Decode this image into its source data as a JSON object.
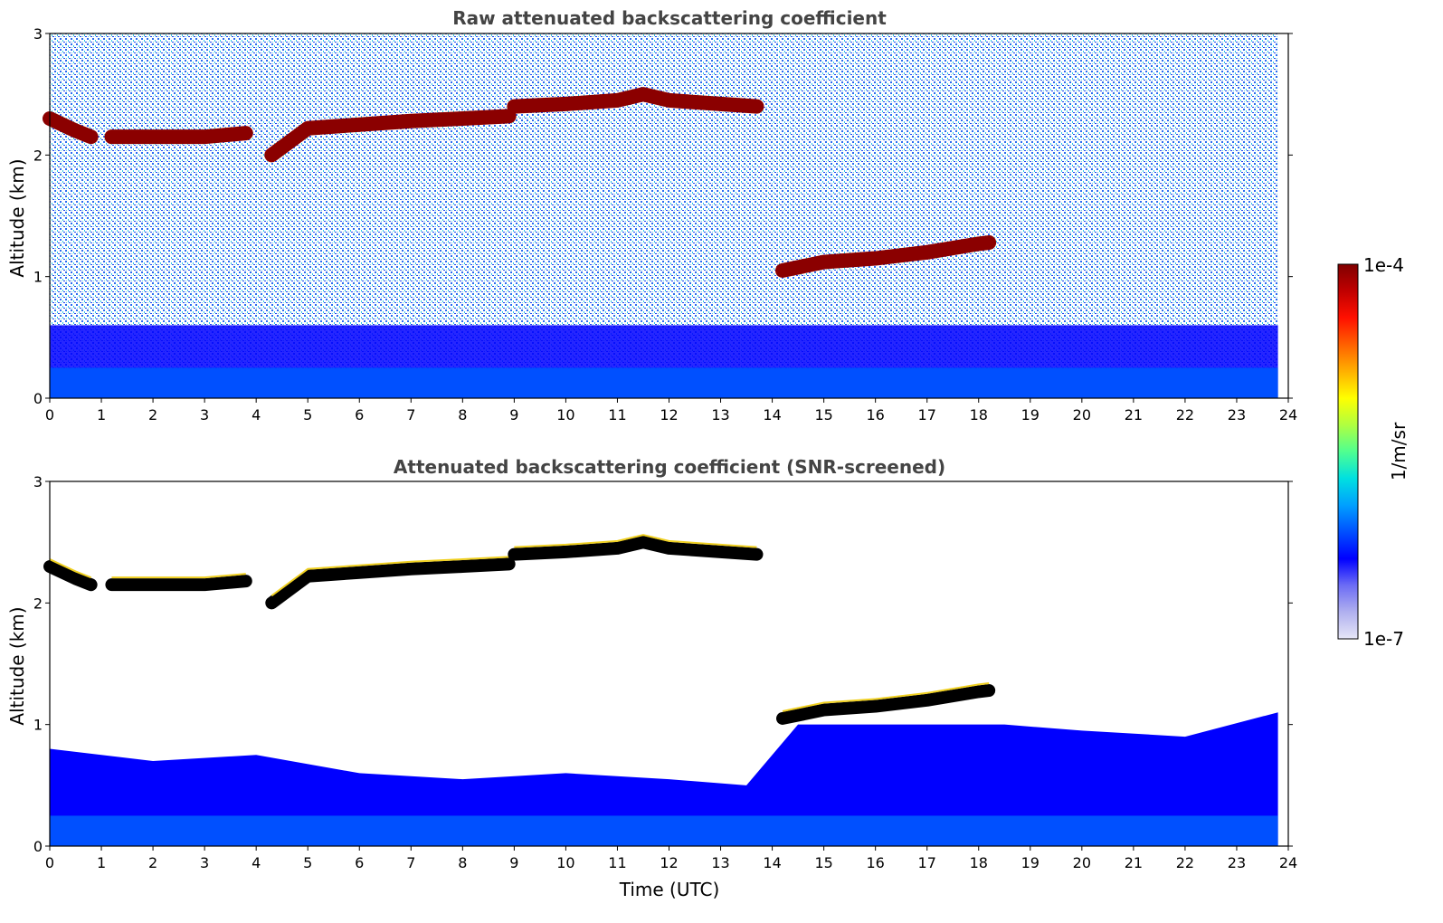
{
  "colorbar": {
    "label": "1/m/sr",
    "max_label": "1e-4",
    "min_label": "1e-7",
    "colors": [
      "#e6e6f7",
      "#b0b0ef",
      "#6c6cf5",
      "#0000ff",
      "#0050ff",
      "#00a0ff",
      "#00e0e0",
      "#50ff90",
      "#b0ff40",
      "#ffff00",
      "#ffb000",
      "#ff6000",
      "#ff1000",
      "#c00000",
      "#800000"
    ]
  },
  "chart_data": [
    {
      "type": "heatmap",
      "title": "Raw attenuated backscattering coefficient",
      "xlabel": "",
      "ylabel": "Altitude (km)",
      "xlim": [
        0,
        24
      ],
      "ylim": [
        0,
        3
      ],
      "xticks": [
        0,
        1,
        2,
        3,
        4,
        5,
        6,
        7,
        8,
        9,
        10,
        11,
        12,
        13,
        14,
        15,
        16,
        17,
        18,
        19,
        20,
        21,
        22,
        23,
        24
      ],
      "yticks": [
        0,
        1,
        2,
        3
      ],
      "colorscale": "jet, log 1e-7 to 1e-4 1/m/sr",
      "cloud_layers": [
        {
          "t": [
            0.0,
            0.5,
            0.8
          ],
          "alt": [
            2.3,
            2.2,
            2.15
          ],
          "level": 0.95
        },
        {
          "t": [
            1.2,
            2.0,
            3.0,
            3.8
          ],
          "alt": [
            2.15,
            2.15,
            2.15,
            2.18
          ],
          "level": 0.95
        },
        {
          "t": [
            4.3,
            5.0,
            6.0,
            7.0,
            8.0,
            8.9
          ],
          "alt": [
            2.0,
            2.22,
            2.25,
            2.28,
            2.3,
            2.32
          ],
          "level": 0.95
        },
        {
          "t": [
            9.0,
            10.0,
            11.0,
            11.5,
            12.0,
            13.0,
            13.7
          ],
          "alt": [
            2.4,
            2.42,
            2.45,
            2.5,
            2.45,
            2.42,
            2.4
          ],
          "level": 0.95
        },
        {
          "t": [
            14.2,
            15.0,
            16.0,
            17.0,
            18.0,
            18.2
          ],
          "alt": [
            1.05,
            1.12,
            1.15,
            1.2,
            1.27,
            1.28
          ],
          "level": 0.95
        }
      ],
      "boundary_layer_top_km": 0.6
    },
    {
      "type": "heatmap",
      "title": "Attenuated backscattering coefficient (SNR-screened)",
      "xlabel": "Time (UTC)",
      "ylabel": "Altitude (km)",
      "xlim": [
        0,
        24
      ],
      "ylim": [
        0,
        3
      ],
      "xticks": [
        0,
        1,
        2,
        3,
        4,
        5,
        6,
        7,
        8,
        9,
        10,
        11,
        12,
        13,
        14,
        15,
        16,
        17,
        18,
        19,
        20,
        21,
        22,
        23,
        24
      ],
      "yticks": [
        0,
        1,
        2,
        3
      ],
      "colorscale": "jet, log 1e-7 to 1e-4 1/m/sr",
      "cloud_layers": [
        {
          "t": [
            0.0,
            0.5,
            0.8
          ],
          "alt": [
            2.3,
            2.2,
            2.15
          ],
          "level": 1.0
        },
        {
          "t": [
            1.2,
            2.0,
            3.0,
            3.8
          ],
          "alt": [
            2.15,
            2.15,
            2.15,
            2.18
          ],
          "level": 1.0
        },
        {
          "t": [
            4.3,
            5.0,
            6.0,
            7.0,
            8.0,
            8.9
          ],
          "alt": [
            2.0,
            2.22,
            2.25,
            2.28,
            2.3,
            2.32
          ],
          "level": 1.0
        },
        {
          "t": [
            9.0,
            10.0,
            11.0,
            11.5,
            12.0,
            13.0,
            13.7
          ],
          "alt": [
            2.4,
            2.42,
            2.45,
            2.5,
            2.45,
            2.42,
            2.4
          ],
          "level": 1.0
        },
        {
          "t": [
            14.2,
            15.0,
            16.0,
            17.0,
            18.0,
            18.2
          ],
          "alt": [
            1.05,
            1.12,
            1.15,
            1.2,
            1.27,
            1.28
          ],
          "level": 1.0
        }
      ],
      "boundary_layer_top_km": [
        {
          "t": 0,
          "alt": 0.8
        },
        {
          "t": 2,
          "alt": 0.7
        },
        {
          "t": 4,
          "alt": 0.75
        },
        {
          "t": 6,
          "alt": 0.6
        },
        {
          "t": 8,
          "alt": 0.55
        },
        {
          "t": 10,
          "alt": 0.6
        },
        {
          "t": 12,
          "alt": 0.55
        },
        {
          "t": 13.5,
          "alt": 0.5
        },
        {
          "t": 14.5,
          "alt": 1.0
        },
        {
          "t": 18.5,
          "alt": 1.0
        },
        {
          "t": 20,
          "alt": 0.95
        },
        {
          "t": 22,
          "alt": 0.9
        },
        {
          "t": 23.8,
          "alt": 1.1
        }
      ]
    }
  ]
}
